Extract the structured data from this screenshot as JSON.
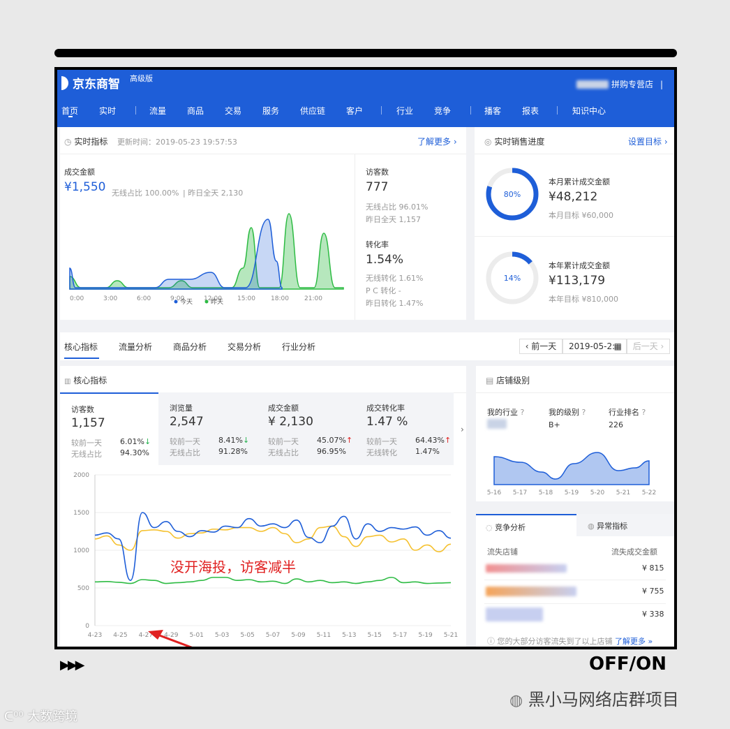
{
  "header": {
    "logo": "京东商智",
    "edition": "高级版",
    "store_name": "拼购专营店",
    "nav": [
      "首页",
      "实时",
      "流量",
      "商品",
      "交易",
      "服务",
      "供应链",
      "客户",
      "行业",
      "竞争",
      "播客",
      "报表",
      "知识中心"
    ]
  },
  "realtime": {
    "title": "实时指标",
    "updated": "更新时间：2019-05-23 19:57:53",
    "learn_more": "了解更多 ›",
    "gmv_label": "成交金额",
    "gmv_value": "¥1,550",
    "wireless_share": "无线占比 100.00%",
    "yesterday_full": "昨日全天 2,130",
    "x_ticks": [
      "0:00",
      "3:00",
      "6:00",
      "9:00",
      "12:00",
      "15:00",
      "18:00",
      "21:00"
    ],
    "legend_today": "今天",
    "legend_yesterday": "昨天",
    "visitors_label": "访客数",
    "visitors_value": "777",
    "visitors_wireless": "无线占比 96.01%",
    "visitors_yesterday": "昨日全天 1,157",
    "conv_label": "转化率",
    "conv_value": "1.54%",
    "conv_wireless": "无线转化 1.61%",
    "conv_pc": "P C 转化 -",
    "conv_yesterday": "昨日转化 1.47%"
  },
  "sales_progress": {
    "title": "实时销售进度",
    "set_target": "设置目标 ›",
    "month_pct": "80%",
    "month_label": "本月累计成交金额",
    "month_value": "¥48,212",
    "month_target": "本月目标 ¥60,000",
    "year_pct": "14%",
    "year_label": "本年累计成交金额",
    "year_value": "¥113,179",
    "year_target": "本年目标 ¥810,000",
    "month_fraction": 0.8,
    "year_fraction": 0.14
  },
  "tabs": [
    "核心指标",
    "流量分析",
    "商品分析",
    "交易分析",
    "行业分析"
  ],
  "date_nav": {
    "prev": "‹ 前一天",
    "date": "2019-05-2:",
    "next": "后一天 ›"
  },
  "core": {
    "title": "核心指标",
    "cards": [
      {
        "label": "访客数",
        "value": "1,157",
        "cmp_label": "较前一天",
        "cmp_value": "6.01%",
        "arrow": "↓",
        "dir": "down",
        "w_label": "无线占比",
        "w_value": "94.30%"
      },
      {
        "label": "浏览量",
        "value": "2,547",
        "cmp_label": "较前一天",
        "cmp_value": "8.41%",
        "arrow": "↓",
        "dir": "down",
        "w_label": "无线占比",
        "w_value": "91.28%"
      },
      {
        "label": "成交金额",
        "value": "¥ 2,130",
        "cmp_label": "较前一天",
        "cmp_value": "45.07%",
        "arrow": "↑",
        "dir": "up",
        "w_label": "无线占比",
        "w_value": "96.95%"
      },
      {
        "label": "成交转化率",
        "value": "1.47 %",
        "cmp_label": "较前一天",
        "cmp_value": "64.43%",
        "arrow": "↑",
        "dir": "up",
        "w_label": "无线转化",
        "w_value": "1.47%"
      }
    ],
    "y_ticks": [
      "2000",
      "1500",
      "1000",
      "500",
      "0"
    ],
    "x_ticks": [
      "4-23",
      "4-25",
      "4-27",
      "4-29",
      "5-01",
      "5-03",
      "5-05",
      "5-07",
      "5-09",
      "5-11",
      "5-13",
      "5-15",
      "5-17",
      "5-19",
      "5-21"
    ],
    "annotation": "没开海投，访客减半"
  },
  "shop_level": {
    "title": "店铺级别",
    "col1": "我的行业",
    "col2": "我的级别",
    "col3": "行业排名",
    "level": "B+",
    "rank": "226",
    "x_ticks": [
      "5-16",
      "5-17",
      "5-18",
      "5-19",
      "5-20",
      "5-21",
      "5-22"
    ]
  },
  "competition": {
    "tab_active": "竞争分析",
    "tab_other": "异常指标",
    "col1": "流失店铺",
    "col2": "流失成交金额",
    "rows": [
      "¥ 815",
      "¥ 755",
      "¥ 338"
    ],
    "footer": "您的大部分访客流失到了以上店铺",
    "footer_link": "了解更多 »"
  },
  "footer": {
    "off_on": "OFF/ON",
    "brand": "黑小马网络店群项目",
    "watermark": "大数跨境"
  },
  "colors": {
    "brand_blue": "#1e5ed8",
    "green": "#2dbb43",
    "orange": "#f5c12f",
    "red": "#e02020"
  }
}
